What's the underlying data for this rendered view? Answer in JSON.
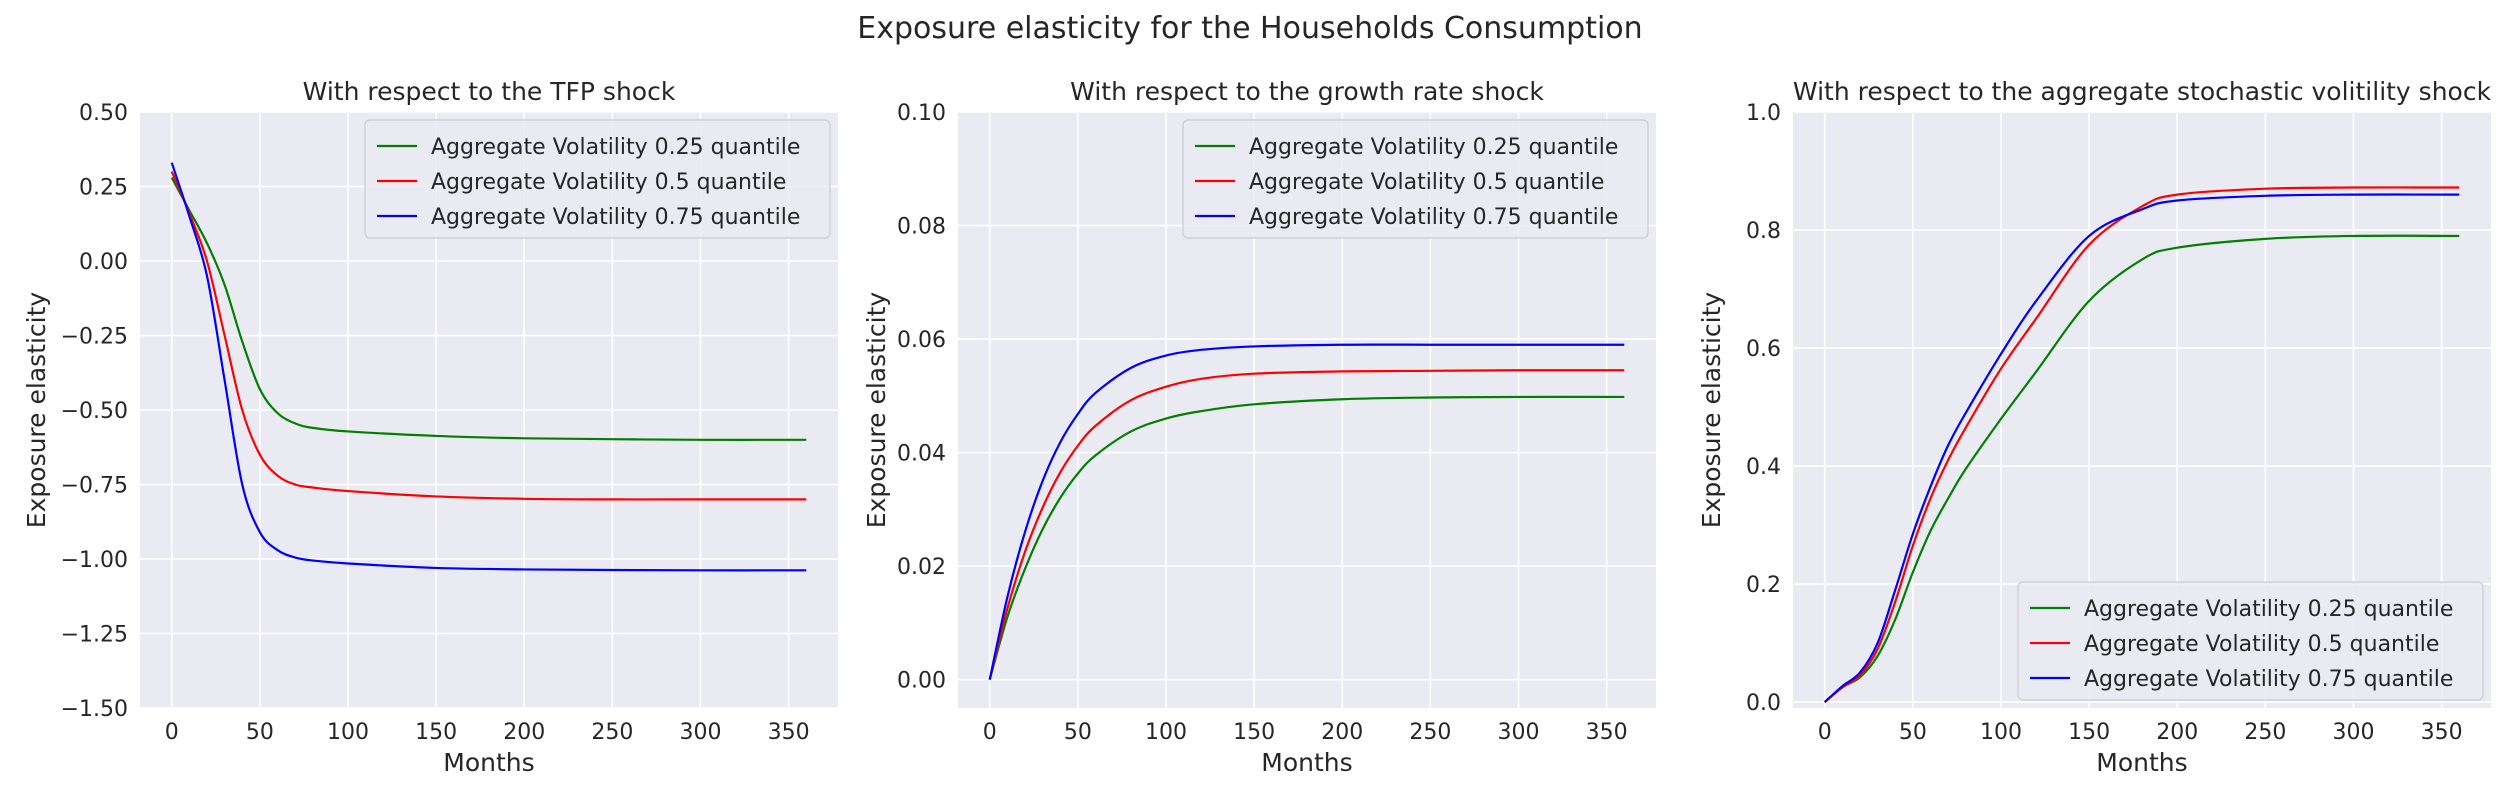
{
  "figure": {
    "title": "Exposure elasticity for the Households Consumption"
  },
  "colors": {
    "plot_bg": "#eaeaf2",
    "grid": "#ffffff",
    "legend_bg": "#eaeaf2",
    "legend_border": "#cccccc",
    "text": "#262626"
  },
  "chart_data": [
    {
      "type": "line",
      "title": "With respect to the TFP shock",
      "xlabel": "Months",
      "ylabel": "Exposure elasticity",
      "xlim": [
        -18,
        378
      ],
      "ylim": [
        -1.5,
        0.5
      ],
      "xticks": [
        0,
        50,
        100,
        150,
        200,
        250,
        300,
        350
      ],
      "yticks": [
        -1.5,
        -1.25,
        -1.0,
        -0.75,
        -0.5,
        -0.25,
        0.0,
        0.25,
        0.5
      ],
      "ytick_labels": [
        "−1.50",
        "−1.25",
        "−1.00",
        "−0.75",
        "−0.50",
        "−0.25",
        "0.00",
        "0.25",
        "0.50"
      ],
      "legend": "upper right",
      "series": [
        {
          "name": "Aggregate Volatility 0.25 quantile",
          "color": "#008000",
          "x": [
            0,
            10,
            20,
            30,
            40,
            50,
            60,
            70,
            80,
            100,
            150,
            200,
            250,
            300,
            360
          ],
          "y": [
            0.28,
            0.17,
            0.06,
            -0.08,
            -0.27,
            -0.43,
            -0.51,
            -0.545,
            -0.56,
            -0.572,
            -0.587,
            -0.595,
            -0.598,
            -0.6,
            -0.6
          ]
        },
        {
          "name": "Aggregate Volatility 0.5 quantile",
          "color": "#ff0000",
          "x": [
            0,
            10,
            20,
            30,
            40,
            50,
            60,
            70,
            80,
            100,
            150,
            200,
            250,
            300,
            360
          ],
          "y": [
            0.3,
            0.16,
            0.0,
            -0.25,
            -0.5,
            -0.65,
            -0.72,
            -0.75,
            -0.76,
            -0.772,
            -0.79,
            -0.798,
            -0.8,
            -0.8,
            -0.8
          ]
        },
        {
          "name": "Aggregate Volatility 0.75 quantile",
          "color": "#0000ff",
          "x": [
            0,
            10,
            20,
            30,
            40,
            50,
            60,
            70,
            80,
            100,
            150,
            200,
            250,
            300,
            360
          ],
          "y": [
            0.33,
            0.15,
            -0.05,
            -0.4,
            -0.75,
            -0.91,
            -0.97,
            -0.995,
            -1.005,
            -1.015,
            -1.03,
            -1.035,
            -1.037,
            -1.038,
            -1.038
          ]
        }
      ]
    },
    {
      "type": "line",
      "title": "With respect to the growth rate shock",
      "xlabel": "Months",
      "ylabel": "Exposure elasticity",
      "xlim": [
        -18,
        378
      ],
      "ylim": [
        -0.005,
        0.1
      ],
      "xticks": [
        0,
        50,
        100,
        150,
        200,
        250,
        300,
        350
      ],
      "yticks": [
        0.0,
        0.02,
        0.04,
        0.06,
        0.08,
        0.1
      ],
      "ytick_labels": [
        "0.00",
        "0.02",
        "0.04",
        "0.06",
        "0.08",
        "0.10"
      ],
      "legend": "upper right",
      "series": [
        {
          "name": "Aggregate Volatility 0.25 quantile",
          "color": "#008000",
          "x": [
            0,
            10,
            20,
            30,
            40,
            50,
            60,
            80,
            100,
            120,
            150,
            200,
            250,
            300,
            360
          ],
          "y": [
            0.0,
            0.011,
            0.0195,
            0.0265,
            0.032,
            0.0363,
            0.0395,
            0.0437,
            0.046,
            0.0473,
            0.0485,
            0.0494,
            0.0497,
            0.0498,
            0.0498
          ]
        },
        {
          "name": "Aggregate Volatility 0.5 quantile",
          "color": "#ff0000",
          "x": [
            0,
            10,
            20,
            30,
            40,
            50,
            60,
            80,
            100,
            120,
            150,
            200,
            250,
            300,
            360
          ],
          "y": [
            0.0,
            0.0125,
            0.0225,
            0.0303,
            0.0365,
            0.0412,
            0.0447,
            0.0492,
            0.0516,
            0.053,
            0.0539,
            0.0543,
            0.0544,
            0.0545,
            0.0545
          ]
        },
        {
          "name": "Aggregate Volatility 0.75 quantile",
          "color": "#0000ff",
          "x": [
            0,
            10,
            20,
            30,
            40,
            50,
            60,
            80,
            100,
            120,
            150,
            200,
            250,
            300,
            360
          ],
          "y": [
            0.0,
            0.0145,
            0.026,
            0.035,
            0.0418,
            0.0468,
            0.0505,
            0.0549,
            0.0571,
            0.0581,
            0.0587,
            0.059,
            0.059,
            0.059,
            0.059
          ]
        }
      ]
    },
    {
      "type": "line",
      "title": "With respect to the aggregate stochastic volitility shock",
      "xlabel": "Months",
      "ylabel": "Exposure elasticity",
      "xlim": [
        -18,
        378
      ],
      "ylim": [
        -0.01,
        1.0
      ],
      "xticks": [
        0,
        50,
        100,
        150,
        200,
        250,
        300,
        350
      ],
      "yticks": [
        0.0,
        0.2,
        0.4,
        0.6,
        0.8,
        1.0
      ],
      "ytick_labels": [
        "0.0",
        "0.2",
        "0.4",
        "0.6",
        "0.8",
        "1.0"
      ],
      "legend": "lower right",
      "series": [
        {
          "name": "Aggregate Volatility 0.25 quantile",
          "color": "#008000",
          "x": [
            0,
            10,
            20,
            30,
            40,
            50,
            60,
            70,
            80,
            100,
            120,
            150,
            180,
            200,
            250,
            300,
            360
          ],
          "y": [
            0.0,
            0.025,
            0.042,
            0.078,
            0.14,
            0.22,
            0.29,
            0.345,
            0.395,
            0.48,
            0.56,
            0.68,
            0.75,
            0.77,
            0.785,
            0.79,
            0.79
          ]
        },
        {
          "name": "Aggregate Volatility 0.5 quantile",
          "color": "#ff0000",
          "x": [
            0,
            10,
            20,
            30,
            40,
            50,
            60,
            70,
            80,
            100,
            120,
            150,
            180,
            200,
            250,
            300,
            360
          ],
          "y": [
            0.0,
            0.025,
            0.045,
            0.09,
            0.17,
            0.265,
            0.345,
            0.41,
            0.465,
            0.565,
            0.65,
            0.775,
            0.84,
            0.86,
            0.87,
            0.872,
            0.872
          ]
        },
        {
          "name": "Aggregate Volatility 0.75 quantile",
          "color": "#0000ff",
          "x": [
            0,
            10,
            20,
            30,
            40,
            50,
            60,
            70,
            80,
            100,
            120,
            150,
            180,
            200,
            250,
            300,
            360
          ],
          "y": [
            0.0,
            0.027,
            0.05,
            0.1,
            0.19,
            0.285,
            0.365,
            0.435,
            0.49,
            0.59,
            0.68,
            0.79,
            0.835,
            0.85,
            0.858,
            0.86,
            0.86
          ]
        }
      ]
    }
  ]
}
